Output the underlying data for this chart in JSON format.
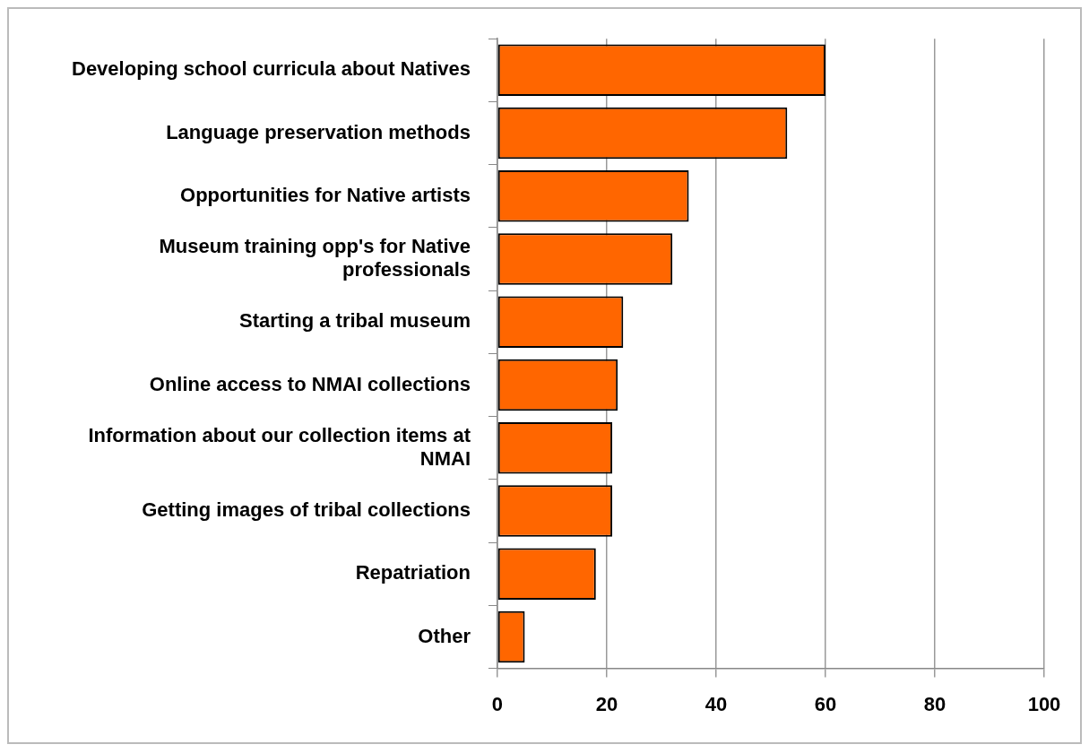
{
  "chart_data": {
    "type": "bar",
    "orientation": "horizontal",
    "categories": [
      "Developing school curricula about Natives",
      "Language preservation methods",
      "Opportunities for Native artists",
      "Museum training opp's for Native professionals",
      "Starting a tribal museum",
      "Online access to NMAI collections",
      "Information about our collection items at NMAI",
      "Getting images of tribal collections",
      "Repatriation",
      "Other"
    ],
    "values": [
      60,
      53,
      35,
      32,
      23,
      22,
      21,
      21,
      18,
      5
    ],
    "color": "#ff6600",
    "xlim": [
      0,
      100
    ],
    "xticks": [
      0,
      20,
      40,
      60,
      80,
      100
    ],
    "grid": "x"
  }
}
